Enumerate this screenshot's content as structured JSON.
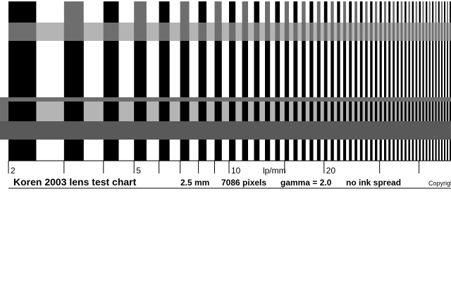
{
  "chart_title": "Koren 2003 lens test chart",
  "scale": {
    "labels": [
      {
        "text": "2",
        "lp_mm": 2
      },
      {
        "text": "5",
        "lp_mm": 5
      },
      {
        "text": "10",
        "lp_mm": 10
      },
      {
        "text": "lp/mm",
        "lp_mm": 12.6
      },
      {
        "text": "20",
        "lp_mm": 20
      }
    ],
    "ticks_lp_mm": [
      2,
      3,
      4,
      5,
      6,
      7,
      8,
      9,
      10,
      15,
      20,
      30,
      40
    ]
  },
  "specs": {
    "size": "2.5 mm",
    "pixels": "7086 pixels",
    "gamma": "gamma = 2.0",
    "ink": "no ink spread",
    "copyright": "Copyright"
  },
  "colors": {
    "black": "#000000",
    "white": "#ffffff",
    "light_gray": "#b4b4b4",
    "mid_gray": "#6e6e6e",
    "band_gray": "#595959"
  }
}
